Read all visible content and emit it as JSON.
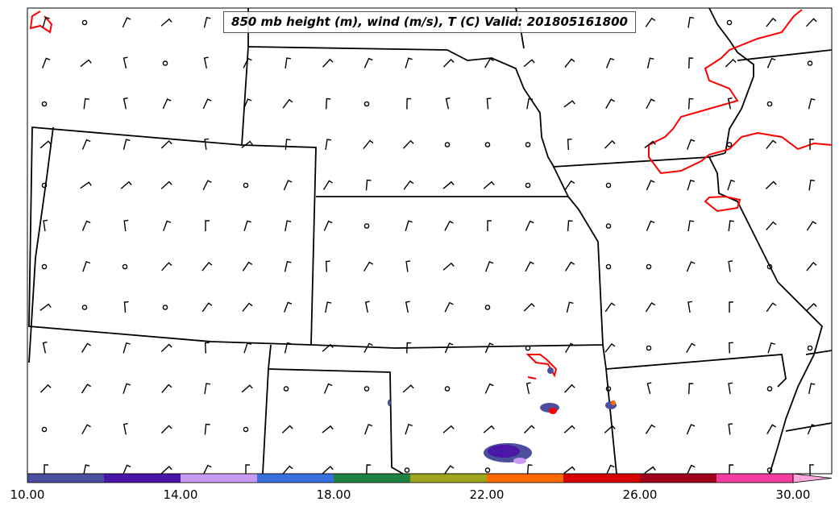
{
  "title": "850 mb height (m), wind (m/s), T (C) Valid: 201805161800",
  "colorbar": {
    "colors": [
      "#4b4f9e",
      "#4b16a8",
      "#c99af2",
      "#3a70de",
      "#1e8242",
      "#9ea51b",
      "#ff6a00",
      "#d60000",
      "#a0001c",
      "#f23ea0",
      "#ffa6dc"
    ],
    "tick_labels": [
      "10.00",
      "14.00",
      "18.00",
      "22.00",
      "26.00",
      "30.00"
    ]
  },
  "contour_color": "#ff0000",
  "boundary_color": "#000000"
}
